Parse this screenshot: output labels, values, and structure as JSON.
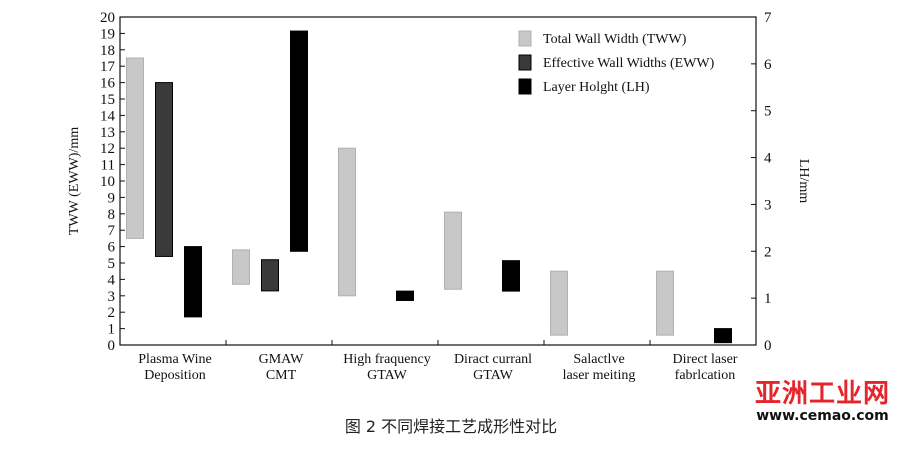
{
  "chart_data": {
    "type": "bar",
    "subtype": "floating-range",
    "categories": [
      [
        "Plasma Wine",
        "Deposition"
      ],
      [
        "GMAW",
        "CMT"
      ],
      [
        "High fraquency",
        "GTAW"
      ],
      [
        "Diract curranl",
        "GTAW"
      ],
      [
        "Salactlve",
        "laser meiting"
      ],
      [
        "Direct laser",
        "fabrlcation"
      ]
    ],
    "series": [
      {
        "name": "Total Wall Width (TWW)",
        "axis": "left",
        "color": "#c8c8c8",
        "border": "#b0b0b0",
        "ranges": [
          [
            6.5,
            17.5
          ],
          [
            3.7,
            5.8
          ],
          [
            3.0,
            12.0
          ],
          [
            3.4,
            8.1
          ],
          [
            0.6,
            4.5
          ],
          [
            0.6,
            4.5
          ]
        ]
      },
      {
        "name": "Effective Wall Widths (EWW)",
        "axis": "left",
        "color": "#3a3a3a",
        "border": "#000000",
        "ranges": [
          [
            5.4,
            16.0
          ],
          [
            3.3,
            5.2
          ],
          null,
          null,
          null,
          null
        ]
      },
      {
        "name": "Layer Holght (LH)",
        "axis": "right",
        "color": "#000000",
        "border": "#000000",
        "ranges": [
          [
            0.6,
            2.1
          ],
          [
            2.0,
            6.7
          ],
          [
            0.95,
            1.15
          ],
          [
            1.15,
            1.8
          ],
          null,
          [
            0.05,
            0.35
          ]
        ]
      }
    ],
    "ylabel_left": "TWW (EWW)/mm",
    "ylabel_right": "LH/mm",
    "ylim_left": [
      0,
      20
    ],
    "ylim_right": [
      0,
      7
    ],
    "yticks_left": [
      0,
      1,
      2,
      3,
      4,
      5,
      6,
      7,
      8,
      9,
      10,
      11,
      12,
      13,
      14,
      15,
      16,
      17,
      18,
      19,
      20
    ],
    "yticks_right": [
      0,
      1,
      2,
      3,
      4,
      5,
      6,
      7
    ],
    "legend_position": "top-right",
    "grid": false
  },
  "caption": "图 2    不同焊接工艺成形性对比",
  "watermark": {
    "logo": "亚洲工业网",
    "url": "www.cemao.com"
  }
}
